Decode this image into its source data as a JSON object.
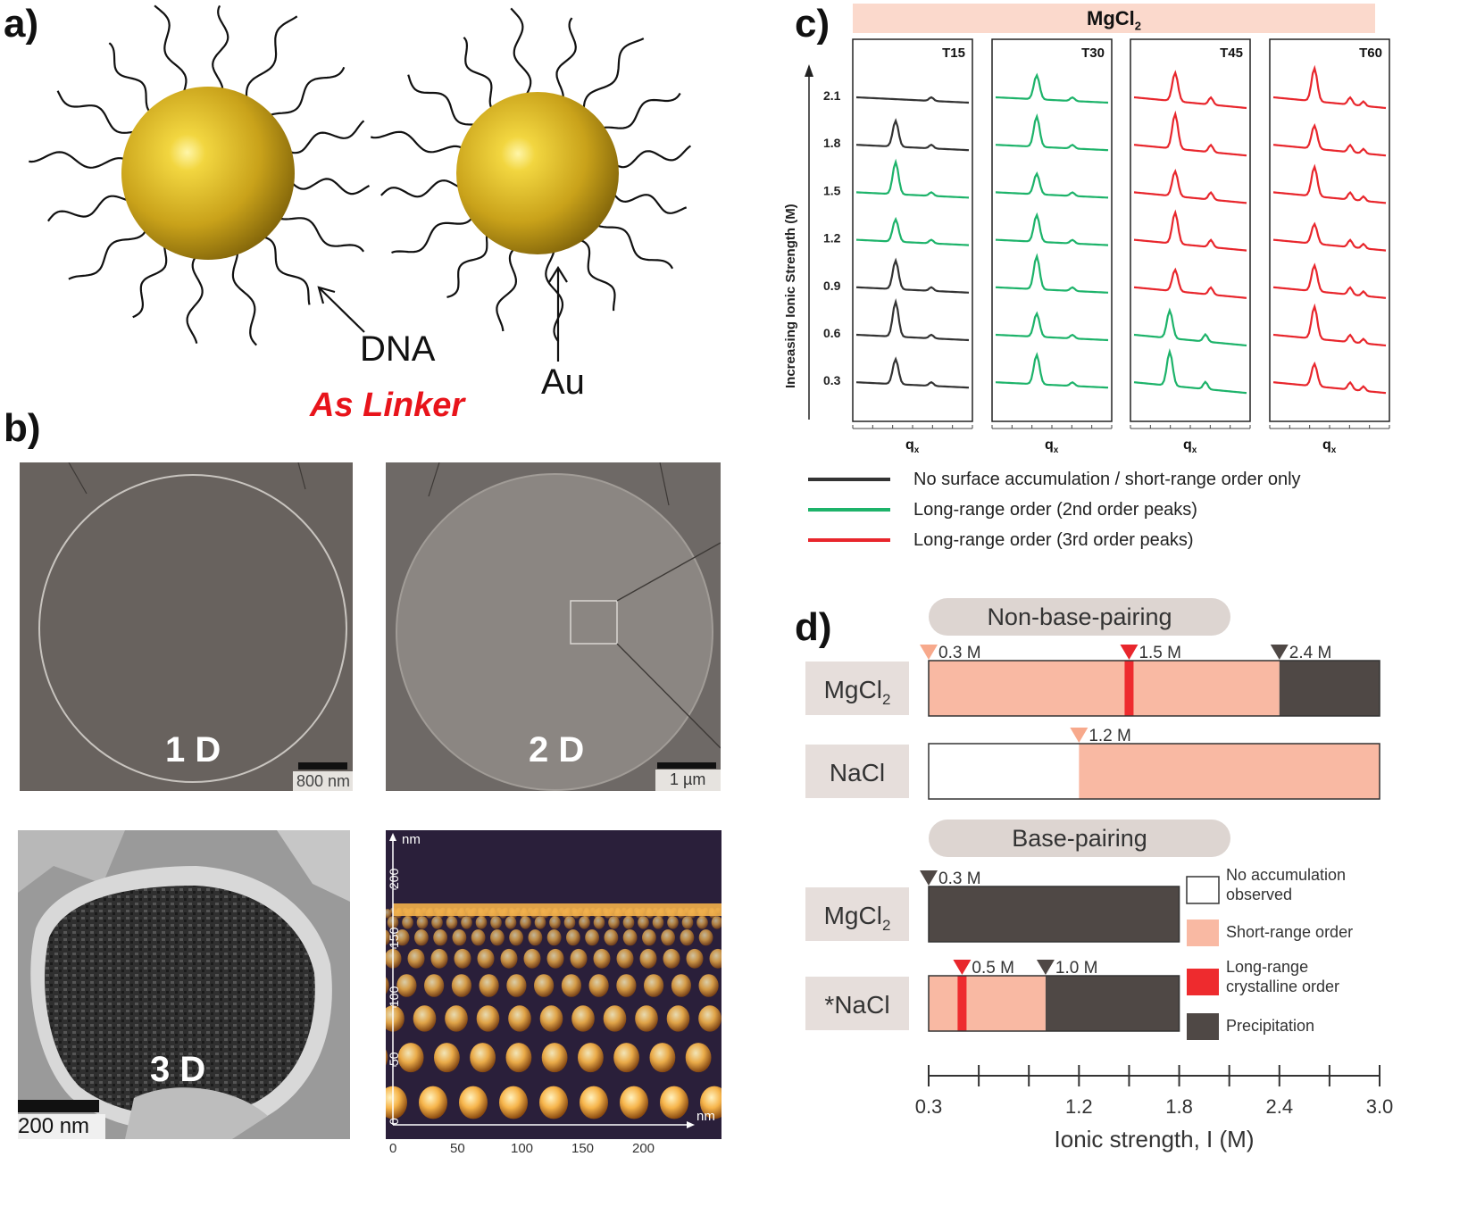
{
  "panel_letters": {
    "a": "a)",
    "b": "b)",
    "c": "c)",
    "d": "d)"
  },
  "panel_a": {
    "label_dna": "DNA",
    "label_au": "Au",
    "caption": "As Linker",
    "colors": {
      "gold": "#d9b21f",
      "caption": "#e8141b"
    }
  },
  "panel_b": {
    "img_1d": {
      "label": "1 D",
      "scale": "800 nm"
    },
    "img_2d": {
      "label": "2 D",
      "scale": "1 µm"
    },
    "img_3d": {
      "label": "3 D",
      "scale": "200 nm"
    },
    "plot_3d": {
      "y_unit": "nm",
      "x_unit": "nm",
      "y_ticks": [
        "0",
        "50",
        "100",
        "150",
        "200"
      ],
      "x_ticks": [
        "0",
        "50",
        "100",
        "150",
        "200"
      ]
    }
  },
  "panel_c": {
    "header": "MgCl",
    "header_sub": "2",
    "y_axis_label": "Increasing Ionic Strength (M)",
    "y_levels": [
      "2.1",
      "1.8",
      "1.5",
      "1.2",
      "0.9",
      "0.6",
      "0.3"
    ],
    "x_label": "q",
    "x_label_sub": "x",
    "columns": [
      {
        "title": "T15",
        "colors": [
          "black",
          "black",
          "green",
          "green",
          "black",
          "black",
          "black"
        ]
      },
      {
        "title": "T30",
        "colors": [
          "green",
          "green",
          "green",
          "green",
          "green",
          "green",
          "green"
        ]
      },
      {
        "title": "T45",
        "colors": [
          "red",
          "red",
          "red",
          "red",
          "red",
          "green",
          "green"
        ]
      },
      {
        "title": "T60",
        "colors": [
          "red",
          "red",
          "red",
          "red",
          "red",
          "red",
          "red"
        ]
      }
    ],
    "legend": [
      {
        "color": "black",
        "label": "No surface accumulation / short-range order only"
      },
      {
        "color": "green",
        "label": "Long-range order (2nd order peaks)"
      },
      {
        "color": "red",
        "label": "Long-range order (3rd order peaks)"
      }
    ],
    "colors": {
      "black": "#333333",
      "green": "#1db36a",
      "red": "#e8262c",
      "header_bg": "#fbd9cc"
    }
  },
  "chart_data": {
    "type": "bar",
    "xlabel": "Ionic strength, I (M)",
    "x_ticks": [
      "0.3",
      "1.2",
      "1.8",
      "2.4",
      "3.0"
    ],
    "xlim": [
      0.3,
      3.0
    ],
    "groups": [
      {
        "title": "Non-base-pairing",
        "rows": [
          {
            "label": "MgCl",
            "label_sub": "2",
            "bar_end": 3.0,
            "segments": [
              {
                "state": "Short-range order",
                "from": 0.3,
                "to": 2.4
              },
              {
                "state": "Long-range crystalline order",
                "at": 1.5
              },
              {
                "state": "Precipitation",
                "from": 2.4,
                "to": 3.0
              }
            ],
            "markers": [
              {
                "value": 0.3,
                "label": "0.3 M",
                "color": "#f7a98c"
              },
              {
                "value": 1.5,
                "label": "1.5 M",
                "color": "#e8262c"
              },
              {
                "value": 2.4,
                "label": "2.4 M",
                "color": "#4f4845"
              }
            ]
          },
          {
            "label": "NaCl",
            "label_sub": "",
            "bar_end": 3.0,
            "segments": [
              {
                "state": "No accumulation observed",
                "from": 0.3,
                "to": 1.2
              },
              {
                "state": "Short-range order",
                "from": 1.2,
                "to": 3.0
              }
            ],
            "markers": [
              {
                "value": 1.2,
                "label": "1.2 M",
                "color": "#f7a98c"
              }
            ]
          }
        ]
      },
      {
        "title": "Base-pairing",
        "rows": [
          {
            "label": "MgCl",
            "label_sub": "2",
            "bar_end": 1.8,
            "segments": [
              {
                "state": "Precipitation",
                "from": 0.3,
                "to": 1.8
              }
            ],
            "markers": [
              {
                "value": 0.3,
                "label": "0.3 M",
                "color": "#4f4845"
              }
            ]
          },
          {
            "label": "*NaCl",
            "label_sub": "",
            "bar_end": 1.8,
            "segments": [
              {
                "state": "Short-range order",
                "from": 0.3,
                "to": 1.0
              },
              {
                "state": "Long-range crystalline order",
                "at": 0.5
              },
              {
                "state": "Precipitation",
                "from": 1.0,
                "to": 1.8
              }
            ],
            "markers": [
              {
                "value": 0.5,
                "label": "0.5 M",
                "color": "#e8262c"
              },
              {
                "value": 1.0,
                "label": "1.0 M",
                "color": "#4f4845"
              }
            ]
          }
        ]
      }
    ],
    "legend": [
      {
        "state": "No accumulation observed",
        "label_lines": [
          "No accumulation",
          "observed"
        ],
        "color": "#ffffff"
      },
      {
        "state": "Short-range order",
        "label_lines": [
          "Short-range order"
        ],
        "color": "#f9b9a3"
      },
      {
        "state": "Long-range crystalline order",
        "label_lines": [
          "Long-range",
          "crystalline order"
        ],
        "color": "#ee2b2e"
      },
      {
        "state": "Precipitation",
        "label_lines": [
          "Precipitation"
        ],
        "color": "#4f4845"
      }
    ]
  }
}
